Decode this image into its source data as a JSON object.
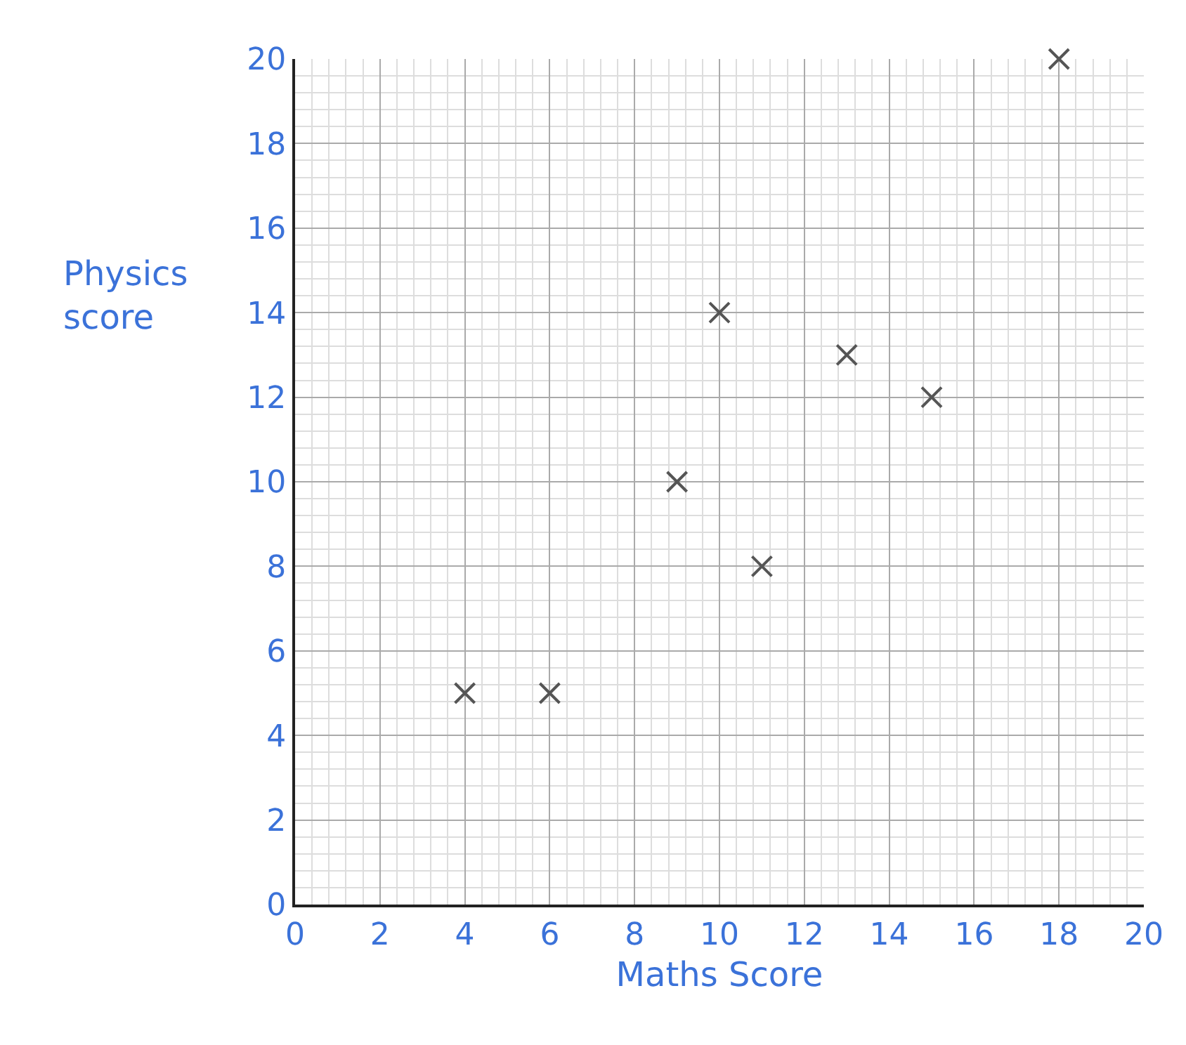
{
  "chart_data": {
    "type": "scatter",
    "xlabel": "Maths Score",
    "ylabel": "Physics score",
    "x": [
      4,
      6,
      9,
      10,
      11,
      13,
      15,
      18
    ],
    "values": [
      5,
      5,
      10,
      14,
      8,
      13,
      12,
      20
    ],
    "color": "#555555",
    "marker": "cross",
    "xlim": [
      0,
      20
    ],
    "xticks": [
      0,
      2,
      4,
      6,
      8,
      10,
      12,
      14,
      16,
      18,
      20
    ],
    "ylim": [
      0,
      20
    ],
    "yticks": [
      0,
      2,
      4,
      6,
      8,
      10,
      12,
      14,
      16,
      18,
      20
    ],
    "grid": true,
    "legend": false
  }
}
